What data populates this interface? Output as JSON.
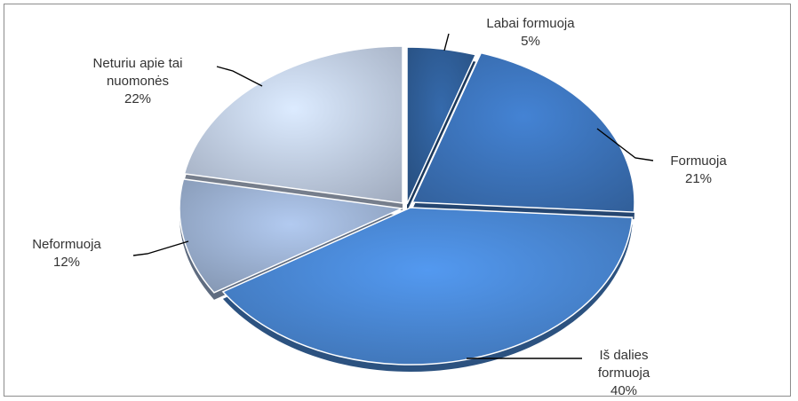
{
  "chart_data": {
    "type": "pie",
    "style": "3d-perspective-pie",
    "legend": "none",
    "slices": [
      {
        "name": "Labai formuoja",
        "value": 5,
        "value_label": "5%",
        "label_lines": [
          "Labai formuoja",
          "5%"
        ],
        "color": "#2f5f9a"
      },
      {
        "name": "Formuoja",
        "value": 21,
        "value_label": "21%",
        "label_lines": [
          "Formuoja",
          "21%"
        ],
        "color": "#3d75bd"
      },
      {
        "name": "Iš dalies formuoja",
        "value": 40,
        "value_label": "40%",
        "label_lines": [
          "Iš dalies",
          "formuoja",
          "40%"
        ],
        "color": "#4a89d6"
      },
      {
        "name": "Neformuoja",
        "value": 12,
        "value_label": "12%",
        "label_lines": [
          "Neformuoja",
          "12%"
        ],
        "color": "#9fb4d6"
      },
      {
        "name": "Neturiu apie tai nuomonės",
        "value": 22,
        "value_label": "22%",
        "label_lines": [
          "Neturiu apie tai",
          "nuomonės",
          "22%"
        ],
        "color": "#c4d2e9"
      }
    ]
  }
}
